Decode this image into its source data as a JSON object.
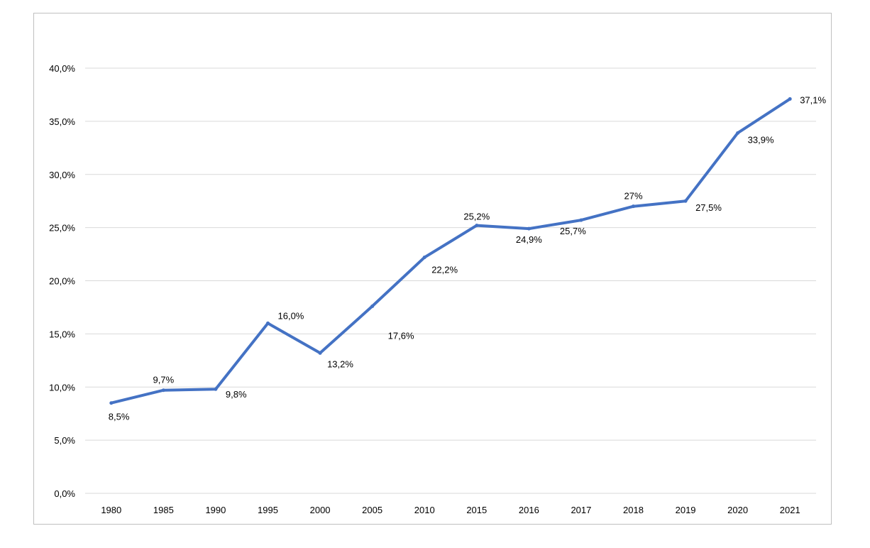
{
  "chart_data": {
    "type": "line",
    "title": "",
    "xlabel": "",
    "ylabel": "",
    "categories": [
      "1980",
      "1985",
      "1990",
      "1995",
      "2000",
      "2005",
      "2010",
      "2015",
      "2016",
      "2017",
      "2018",
      "2019",
      "2020",
      "2021"
    ],
    "series": [
      {
        "values": [
          8.5,
          9.7,
          9.8,
          16.0,
          13.2,
          17.6,
          22.2,
          25.2,
          24.9,
          25.7,
          27.0,
          27.5,
          33.9,
          37.1
        ],
        "labels": [
          "8,5%",
          "9,7%",
          "9,8%",
          "16,0%",
          "13,2%",
          "17,6%",
          "22,2%",
          "25,2%",
          "24,9%",
          "25,7%",
          "27%",
          "27,5%",
          "33,9%",
          "37,1%"
        ],
        "color": "#4472C4"
      }
    ],
    "ylim": [
      0,
      40
    ],
    "yticks": [
      0,
      5,
      10,
      15,
      20,
      25,
      30,
      35,
      40
    ],
    "ytick_labels": [
      "0,0%",
      "5,0%",
      "10,0%",
      "15,0%",
      "20,0%",
      "25,0%",
      "30,0%",
      "35,0%",
      "40,0%"
    ],
    "grid": true,
    "legend": "none"
  }
}
